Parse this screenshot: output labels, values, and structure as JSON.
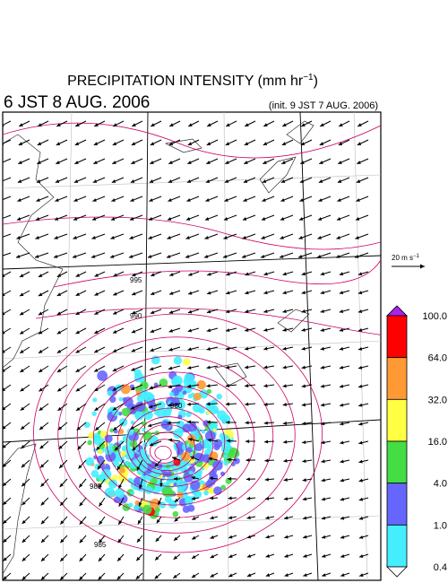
{
  "header": {
    "title": "PRECIPITATION INTENSITY (mm hr",
    "title_exponent": "−1",
    "title_end": ")",
    "valid_time": "6 JST 8 AUG. 2006",
    "init_time": "(init. 9 JST 7 AUG. 2006)"
  },
  "vector_reference": {
    "label": "20 m s",
    "exponent": "−1"
  },
  "colorbar": {
    "labels": [
      "100.0",
      "64.0",
      "32.0",
      "16.0",
      "4.0",
      "1.0",
      "0.4"
    ],
    "colors": [
      "#ff0000",
      "#ff9933",
      "#ffff44",
      "#44dd44",
      "#6666ff",
      "#44eeff"
    ],
    "over_color": "#aa22ee",
    "under_color": "#ffffff"
  },
  "contour_labels": [
    "995",
    "990",
    "985",
    "980",
    "985"
  ]
}
